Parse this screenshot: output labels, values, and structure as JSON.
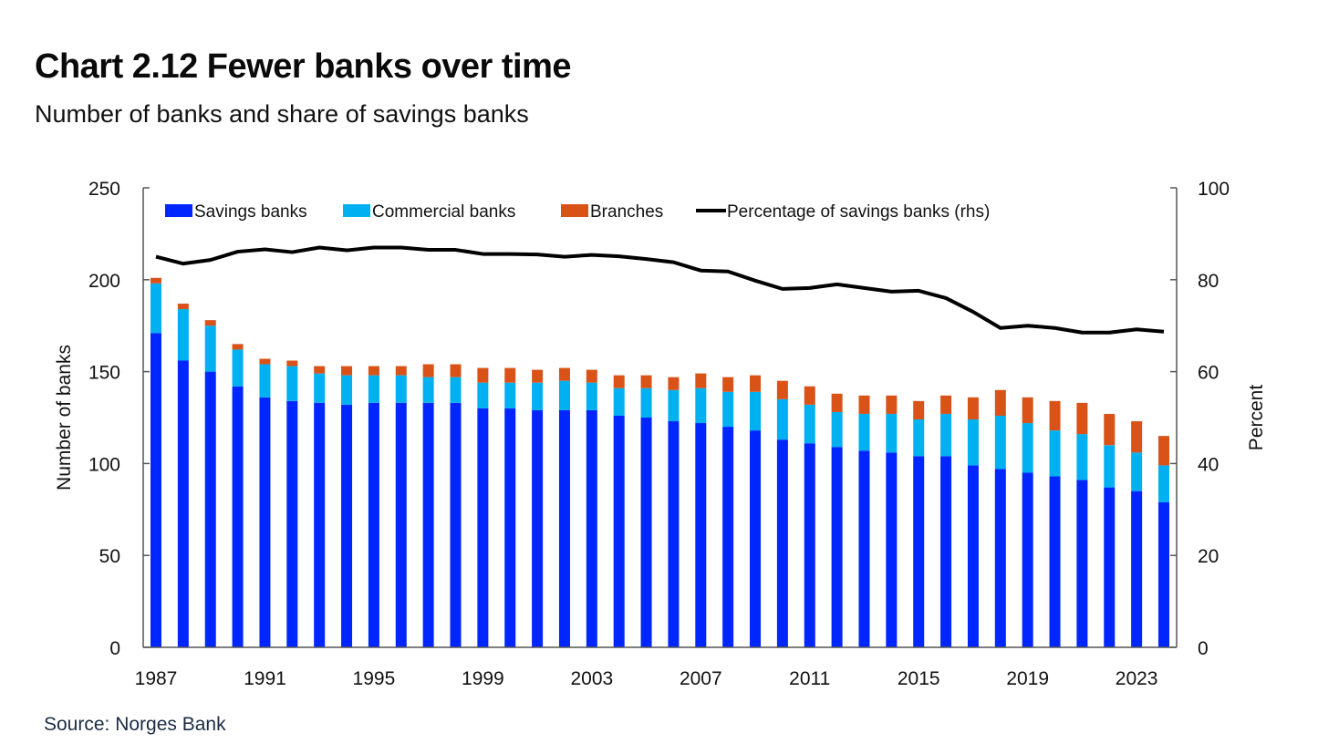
{
  "header": {
    "title": "Chart 2.12 Fewer banks over time",
    "subtitle": "Number of banks and share of savings banks"
  },
  "footer": {
    "source": "Source: Norges Bank"
  },
  "colors": {
    "savings": "#0026ff",
    "commercial": "#00b0f0",
    "branches": "#d95319",
    "line": "#000000",
    "axis": "#555555"
  },
  "chart_data": {
    "type": "bar",
    "stacked": true,
    "title": "Chart 2.12 Fewer banks over time",
    "subtitle": "Number of banks and share of savings banks",
    "ylabel": "Number of banks",
    "y2label": "Percent",
    "ylim": [
      0,
      250
    ],
    "y2lim": [
      0,
      100
    ],
    "yticks": [
      "0",
      "50",
      "100",
      "150",
      "200",
      "250"
    ],
    "y2ticks": [
      "0",
      "20",
      "40",
      "60",
      "80",
      "100"
    ],
    "xticks": [
      "1987",
      "1991",
      "1995",
      "1999",
      "2003",
      "2007",
      "2011",
      "2015",
      "2019",
      "2023"
    ],
    "legend_position": "top-left",
    "grid": false,
    "categories": [
      1987,
      1988,
      1989,
      1990,
      1991,
      1992,
      1993,
      1994,
      1995,
      1996,
      1997,
      1998,
      1999,
      2000,
      2001,
      2002,
      2003,
      2004,
      2005,
      2006,
      2007,
      2008,
      2009,
      2010,
      2011,
      2012,
      2013,
      2014,
      2015,
      2016,
      2017,
      2018,
      2019,
      2020,
      2021,
      2022,
      2023,
      2024
    ],
    "series": [
      {
        "name": "Savings banks",
        "type": "bar",
        "axis": "left",
        "values": [
          171,
          156,
          150,
          142,
          136,
          134,
          133,
          132,
          133,
          133,
          133,
          133,
          130,
          130,
          129,
          129,
          129,
          126,
          125,
          123,
          122,
          120,
          118,
          113,
          111,
          109,
          107,
          106,
          104,
          104,
          99,
          97,
          95,
          93,
          91,
          87,
          85,
          79
        ]
      },
      {
        "name": "Commercial banks",
        "type": "bar",
        "axis": "left",
        "values": [
          27,
          28,
          25,
          20,
          18,
          19,
          16,
          16,
          15,
          15,
          14,
          14,
          14,
          14,
          15,
          16,
          15,
          15,
          16,
          17,
          19,
          19,
          21,
          22,
          21,
          19,
          20,
          21,
          20,
          23,
          25,
          29,
          27,
          25,
          25,
          23,
          21,
          20
        ]
      },
      {
        "name": "Branches",
        "type": "bar",
        "axis": "left",
        "values": [
          3,
          3,
          3,
          3,
          3,
          3,
          4,
          5,
          5,
          5,
          7,
          7,
          8,
          8,
          7,
          7,
          7,
          7,
          7,
          7,
          8,
          8,
          9,
          10,
          10,
          10,
          10,
          10,
          10,
          10,
          12,
          14,
          14,
          16,
          17,
          17,
          17,
          16
        ]
      },
      {
        "name": "Percentage of savings banks (rhs)",
        "type": "line",
        "axis": "right",
        "values": [
          85,
          83.5,
          84.3,
          86.1,
          86.6,
          86,
          87,
          86.4,
          87,
          87,
          86.5,
          86.5,
          85.6,
          85.6,
          85.5,
          85,
          85.4,
          85.1,
          84.5,
          83.8,
          82,
          81.8,
          79.8,
          78,
          78.2,
          79,
          78.2,
          77.4,
          77.6,
          76,
          73,
          69.5,
          70,
          69.5,
          68.5,
          68.5,
          69.2,
          68.7
        ]
      }
    ]
  }
}
